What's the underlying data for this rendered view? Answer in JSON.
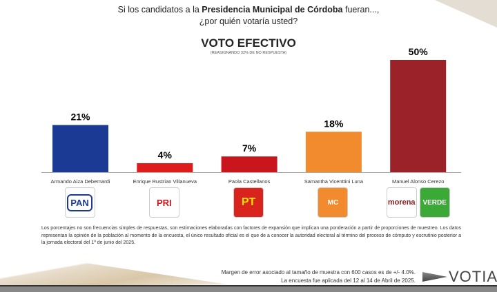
{
  "header": {
    "question_pre": "Si los candidatos a la ",
    "question_bold": "Presidencia Municipal de Córdoba",
    "question_post": " fueran...,",
    "question_line2": "¿por quién votaría usted?"
  },
  "chart_data": {
    "type": "bar",
    "title": "VOTO EFECTIVO",
    "subtitle": "(REASIGNANDO 32% DE NO RESPUESTA)",
    "categories": [
      "Armando Aiza Debernardi",
      "Enrique Rustrian Villanueva",
      "Paola Castellanos",
      "Samantha Vicenttini Luna",
      "Manuel Alonso Cerezo"
    ],
    "values": [
      21,
      4,
      7,
      18,
      50
    ],
    "labels": [
      "21%",
      "4%",
      "7%",
      "18%",
      "50%"
    ],
    "colors": [
      "#1b3a93",
      "#e01b1b",
      "#c8161c",
      "#f28a2e",
      "#9a2228"
    ],
    "ylim": [
      0,
      50
    ],
    "parties": [
      [
        "PAN"
      ],
      [
        "PRI"
      ],
      [
        "PT"
      ],
      [
        "MC"
      ],
      [
        "morena",
        "VERDE"
      ]
    ]
  },
  "note": "Los porcentajes no son frecuencias simples de respuestas, son estimaciones elaboradas con factores de expansión que implican una ponderación a partir de proporciones de muestreo. Los datos representan la opinión de la población al momento de la encuesta, el único resultado oficial es el que de a conocer la autoridad electoral al término del proceso de cómputo y escrutinio posterior a la jornada electoral del 1º de junio del 2025.",
  "footer": {
    "margin": "Margen de error asociado al tamaño de muestra con 600 casos es de +/- 4.0%.",
    "dates": "La encuesta fue aplicada del 12 al 14 de Abril de 2025.",
    "brand": "VOTIA"
  }
}
